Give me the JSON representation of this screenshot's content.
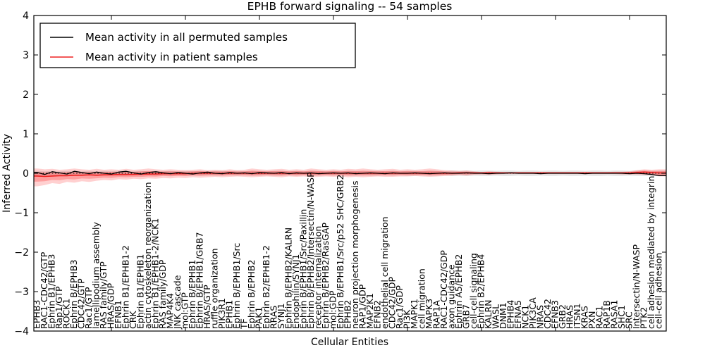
{
  "chart_data": {
    "type": "line",
    "title": "EPHB forward signaling -- 54 samples",
    "xlabel": "Cellular Entities",
    "ylabel": "Inferred Activity",
    "ylim": [
      -4,
      4
    ],
    "yticks": [
      -4,
      -3,
      -2,
      -1,
      0,
      1,
      2,
      3,
      4
    ],
    "xticks_every": 10,
    "grid": false,
    "legend_position": "upper left",
    "zero_line": {
      "style": "dotted",
      "color": "#000000",
      "y": 0
    },
    "categories": [
      "EPHB3",
      "RAC1-CDC42/GTP",
      "Ephrin B1/EPHB3",
      "Rap1/GTP",
      "ROCK1",
      "Ephrin B/EPHB3",
      "CDC42/GTP",
      "Rac1/GTP",
      "lamellipodium assembly",
      "RAS family/GTP",
      "HRAS/GDP",
      "EFNB1",
      "Ephrin B1/EPHB1-2",
      "CRK",
      "Ephrin B1/EPHB1",
      "actin cytoskeleton reorganization",
      "Ephrin B1/EPHB1-2/NCK1",
      "RAS family/GDP",
      "MAP4K4",
      "JNK cascade",
      "mol:GTP",
      "Ephrin B/EPHB1",
      "Ephrin B/EPHB1/GRB7",
      "HRAS/GTP",
      "ruffle organization",
      "PIK3R1",
      "EPHB1",
      "Ephrin B/EPHB1/Src",
      "TF",
      "Ephrin B/EPHB2",
      "PAK1",
      "Ephrin B2/EPHB1-2",
      "RRAS",
      "SYNJ1",
      "Ephrin B/EPHB2/KALRN",
      "Endophilin/SYNJ1",
      "Ephrin B/EPHB1/Src/Paxillin",
      "Ephrin B/EPHB2/Intersectin/N-WASP",
      "receptor internalization",
      "Ephrin B/EPHB2/RasGAP",
      "mol:GDP",
      "Ephrin B/EPHB1/Src/p52 SHC/GRB2",
      "EPHB2",
      "neuron projection morphogenesis",
      "RAP1/GDP",
      "MAP2K1",
      "EFNB2",
      "endothelial cell migration",
      "CDC42/GDP",
      "Rac1/GDP",
      "PI3K",
      "MAPK1",
      "cell migration",
      "MAPK3",
      "RAP1A",
      "RAC1-CDC42/GDP",
      "axon guidance",
      "Ephrin A5/EPHB2",
      "GRB7",
      "cell-cell signaling",
      "Ephrin B2/EPHB4",
      "KALRN",
      "WASL",
      "DNM1",
      "EPHB4",
      "EFNA5",
      "NCK1",
      "PIK3CA",
      "NRAS",
      "CDC42",
      "EFNB3",
      "GRB2",
      "HRAS",
      "ITSN1",
      "KRAS",
      "PXN",
      "RAC1",
      "RAP1B",
      "RASA1",
      "SHC1",
      "SRC",
      "Intersectin/N-WASP",
      "PTK2",
      "cell adhesion mediated by integrin",
      "cell-cell adhesion"
    ],
    "series": [
      {
        "name": "Mean activity in all permuted samples",
        "color": "#000000",
        "style": "solid",
        "values": [
          0.02,
          -0.03,
          0.04,
          0.01,
          -0.02,
          0.05,
          0.02,
          -0.01,
          0.03,
          0.0,
          -0.02,
          0.03,
          0.05,
          0.01,
          -0.02,
          0.02,
          0.04,
          0.01,
          -0.01,
          0.02,
          0.0,
          -0.02,
          0.01,
          0.03,
          0.0,
          -0.01,
          0.02,
          0.0,
          0.01,
          -0.01,
          0.02,
          0.01,
          0.0,
          0.02,
          -0.01,
          0.01,
          0.0,
          0.01,
          -0.01,
          0.0,
          0.01,
          0.0,
          0.01,
          -0.01,
          0.0,
          0.01,
          0.0,
          -0.01,
          0.01,
          0.0,
          0.0,
          0.01,
          0.0,
          -0.01,
          0.0,
          0.01,
          0.0,
          0.0,
          0.01,
          0.0,
          0.0,
          -0.01,
          0.0,
          0.0,
          0.01,
          0.0,
          0.0,
          0.0,
          -0.01,
          0.0,
          0.0,
          0.0,
          0.0,
          0.0,
          -0.01,
          0.0,
          0.0,
          0.0,
          0.0,
          0.0,
          -0.01,
          0.0,
          -0.01,
          -0.03,
          -0.06
        ]
      },
      {
        "name": "Mean activity in patient samples",
        "color": "#ee2222",
        "style": "solid",
        "values": [
          -0.07,
          -0.08,
          -0.07,
          -0.06,
          -0.06,
          -0.05,
          -0.05,
          -0.04,
          -0.05,
          -0.04,
          -0.04,
          -0.03,
          -0.03,
          -0.03,
          -0.02,
          -0.02,
          -0.02,
          -0.01,
          -0.01,
          -0.01,
          -0.01,
          0.0,
          0.0,
          0.0,
          0.0,
          0.0,
          0.0,
          0.0,
          0.0,
          0.0,
          0.0,
          0.0,
          0.0,
          0.0,
          0.0,
          0.0,
          0.0,
          0.0,
          0.0,
          0.0,
          0.0,
          0.0,
          0.0,
          0.0,
          0.0,
          0.0,
          0.0,
          0.0,
          0.0,
          0.0,
          0.0,
          0.0,
          0.0,
          0.0,
          0.0,
          0.0,
          0.0,
          0.01,
          0.01,
          0.01,
          0.01,
          0.01,
          0.01,
          0.01,
          0.01,
          0.01,
          0.01,
          0.01,
          0.01,
          0.01,
          0.01,
          0.01,
          0.01,
          0.01,
          0.01,
          0.01,
          0.01,
          0.01,
          0.01,
          0.01,
          0.01,
          0.02,
          0.03,
          0.02,
          0.01
        ]
      }
    ],
    "bands": [
      {
        "name": "patient-samples-spread",
        "color": "#ff2a2a",
        "opacity_outer": 0.22,
        "opacity_inner": 0.3,
        "inner_scale": 0.55,
        "upper": [
          0.12,
          0.1,
          0.11,
          0.09,
          0.1,
          0.12,
          0.1,
          0.09,
          0.11,
          0.09,
          0.1,
          0.09,
          0.11,
          0.09,
          0.1,
          0.12,
          0.1,
          0.09,
          0.1,
          0.09,
          0.08,
          0.09,
          0.1,
          0.08,
          0.09,
          0.08,
          0.1,
          0.08,
          0.09,
          0.12,
          0.1,
          0.09,
          0.1,
          0.11,
          0.09,
          0.1,
          0.09,
          0.12,
          0.1,
          0.09,
          0.1,
          0.09,
          0.11,
          0.1,
          0.12,
          0.1,
          0.09,
          0.1,
          0.11,
          0.09,
          0.1,
          0.09,
          0.1,
          0.12,
          0.1,
          0.08,
          0.07,
          0.06,
          0.07,
          0.05,
          0.03,
          0.05,
          0.04,
          0.03,
          0.03,
          0.03,
          0.03,
          0.03,
          0.03,
          0.03,
          0.03,
          0.03,
          0.03,
          0.03,
          0.03,
          0.03,
          0.03,
          0.03,
          0.04,
          0.04,
          0.05,
          0.08,
          0.1,
          0.09,
          0.1
        ],
        "lower": [
          -0.33,
          -0.3,
          -0.25,
          -0.27,
          -0.22,
          -0.24,
          -0.2,
          -0.22,
          -0.19,
          -0.17,
          -0.18,
          -0.15,
          -0.16,
          -0.14,
          -0.15,
          -0.13,
          -0.14,
          -0.12,
          -0.13,
          -0.11,
          -0.12,
          -0.1,
          -0.11,
          -0.1,
          -0.09,
          -0.1,
          -0.09,
          -0.08,
          -0.09,
          -0.1,
          -0.09,
          -0.08,
          -0.09,
          -0.1,
          -0.08,
          -0.09,
          -0.08,
          -0.1,
          -0.09,
          -0.08,
          -0.09,
          -0.08,
          -0.1,
          -0.09,
          -0.1,
          -0.09,
          -0.08,
          -0.09,
          -0.09,
          -0.08,
          -0.08,
          -0.07,
          -0.08,
          -0.09,
          -0.08,
          -0.07,
          -0.06,
          -0.05,
          -0.06,
          -0.04,
          -0.03,
          -0.04,
          -0.03,
          -0.02,
          -0.02,
          -0.02,
          -0.02,
          -0.02,
          -0.02,
          -0.02,
          -0.02,
          -0.02,
          -0.02,
          -0.02,
          -0.02,
          -0.02,
          -0.02,
          -0.02,
          -0.02,
          -0.03,
          -0.03,
          -0.03,
          -0.04,
          -0.05,
          -0.08
        ]
      },
      {
        "name": "permuted-samples-spread",
        "color": "#999999",
        "opacity": 0.25,
        "halfwidth": [
          0.06,
          0.05,
          0.06,
          0.05,
          0.06,
          0.06,
          0.05,
          0.06,
          0.05,
          0.06,
          0.05,
          0.06,
          0.06,
          0.05,
          0.06,
          0.05,
          0.06,
          0.05,
          0.06,
          0.05,
          0.06,
          0.05,
          0.06,
          0.05,
          0.06,
          0.06,
          0.05,
          0.06,
          0.05,
          0.06,
          0.06,
          0.05,
          0.06,
          0.06,
          0.05,
          0.06,
          0.05,
          0.06,
          0.06,
          0.05,
          0.06,
          0.05,
          0.06,
          0.06,
          0.05,
          0.06,
          0.06,
          0.05,
          0.06,
          0.05,
          0.06,
          0.06,
          0.05,
          0.06,
          0.06,
          0.05,
          0.07,
          0.06,
          0.07,
          0.06,
          0.07,
          0.07,
          0.06,
          0.07,
          0.07,
          0.06,
          0.07,
          0.07,
          0.06,
          0.07,
          0.07,
          0.06,
          0.07,
          0.07,
          0.06,
          0.07,
          0.07,
          0.06,
          0.07,
          0.07,
          0.06,
          0.07,
          0.07,
          0.06,
          0.07
        ]
      }
    ]
  }
}
